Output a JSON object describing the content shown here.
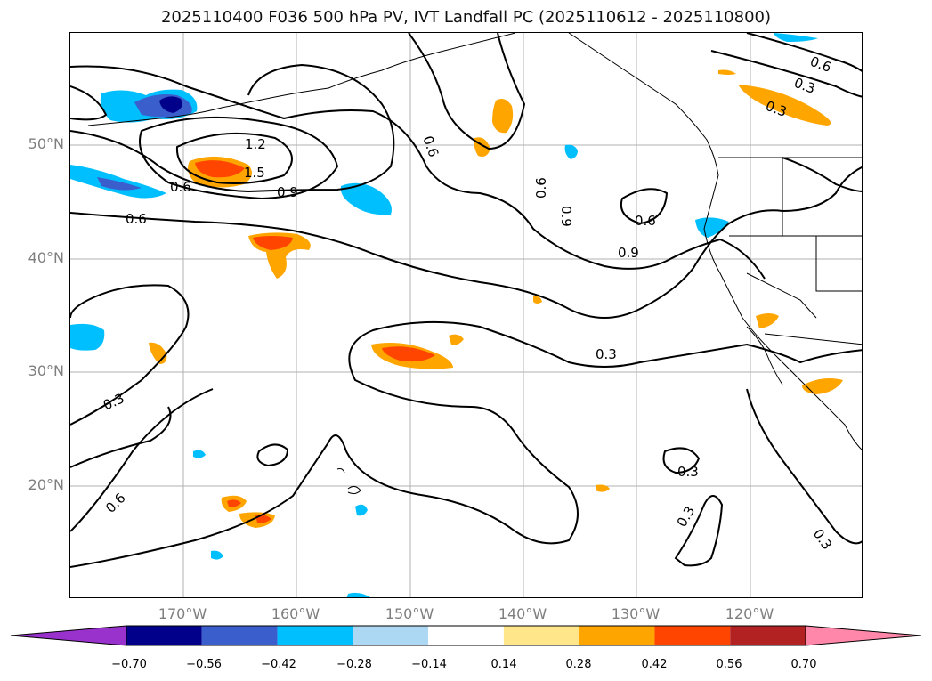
{
  "title": "2025110400 F036 500 hPa PV, IVT Landfall PC (2025110612 - 2025110800)",
  "lat_labels": [
    "50°N",
    "40°N",
    "30°N",
    "20°N"
  ],
  "lon_labels": [
    "170°W",
    "160°W",
    "150°W",
    "140°W",
    "130°W",
    "120°W"
  ],
  "contour_labels": [
    "1.2",
    "1.5",
    "0.9",
    "0.6",
    "0.6",
    "0.6",
    "0.6",
    "0.9",
    "0.6",
    "0.9",
    "0.3",
    "0.3",
    "0.6",
    "0.3",
    "0.3",
    "0.3",
    "0.3",
    "0.3",
    "0.6"
  ],
  "colorbar": {
    "ticks": [
      "−0.70",
      "−0.56",
      "−0.42",
      "−0.28",
      "−0.14",
      "0.14",
      "0.28",
      "0.42",
      "0.56",
      "0.70"
    ],
    "colors": [
      "#9932cc",
      "#00008b",
      "#3a5fcd",
      "#00bfff",
      "#add8f4",
      "#ffffff",
      "#ffe68a",
      "#ffa500",
      "#ff4500",
      "#b22222",
      "#ff88aa"
    ]
  }
}
